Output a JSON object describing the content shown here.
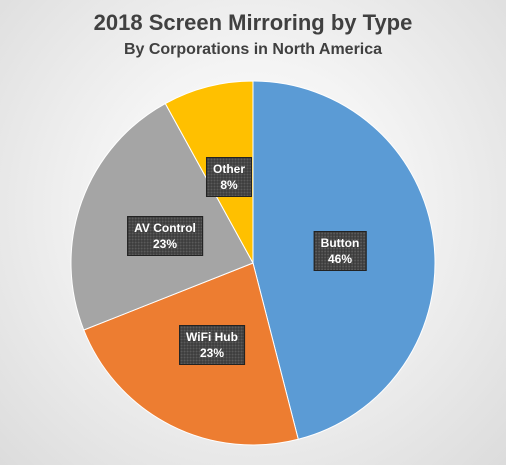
{
  "chart_data": {
    "type": "pie",
    "title": "2018 Screen Mirroring by Type",
    "subtitle": "By Corporations in North America",
    "slices": [
      {
        "label": "Button",
        "value": 46,
        "display": "46%",
        "color": "#5b9bd5"
      },
      {
        "label": "WiFi Hub",
        "value": 23,
        "display": "23%",
        "color": "#ed7d31"
      },
      {
        "label": "AV Control",
        "value": 23,
        "display": "23%",
        "color": "#a5a5a5"
      },
      {
        "label": "Other",
        "value": 8,
        "display": "8%",
        "color": "#ffc000"
      }
    ],
    "start_angle_deg": 0,
    "direction": "clockwise",
    "legend": "none"
  }
}
